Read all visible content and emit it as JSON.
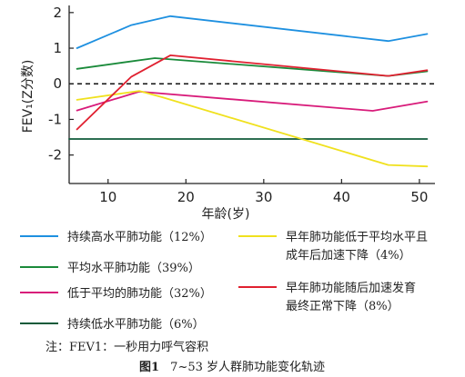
{
  "chart_data": {
    "type": "line",
    "title": "",
    "xlabel": "年龄(岁)",
    "ylabel": "FEV₁(Z分数)",
    "xlim": [
      5,
      52
    ],
    "ylim": [
      -2.8,
      2.2
    ],
    "xticks": [
      10,
      20,
      30,
      40,
      50
    ],
    "yticks": [
      -2,
      -1,
      0,
      1,
      2
    ],
    "zero_line": "dashed",
    "grid": false,
    "legend_position": "below",
    "series": [
      {
        "name": "持续高水平肺功能（12%）",
        "color": "#1e90e0",
        "points": [
          [
            6,
            1.0
          ],
          [
            13,
            1.65
          ],
          [
            18,
            1.9
          ],
          [
            46,
            1.2
          ],
          [
            51,
            1.4
          ]
        ]
      },
      {
        "name": "平均水平肺功能（39%）",
        "color": "#1a8a3a",
        "points": [
          [
            6,
            0.42
          ],
          [
            12,
            0.6
          ],
          [
            16,
            0.72
          ],
          [
            46,
            0.22
          ],
          [
            51,
            0.35
          ]
        ]
      },
      {
        "name": "低于平均的肺功能（32%）",
        "color": "#d81b7a",
        "points": [
          [
            6,
            -0.75
          ],
          [
            14,
            -0.22
          ],
          [
            44,
            -0.76
          ],
          [
            51,
            -0.5
          ]
        ]
      },
      {
        "name": "持续低水平肺功能（6%）",
        "color": "#0f5a3a",
        "points": [
          [
            5,
            -1.55
          ],
          [
            51,
            -1.55
          ]
        ]
      },
      {
        "name_lines": [
          "早年肺功能低于平均水平且",
          "成年后加速下降（4%）"
        ],
        "color": "#f0e11e",
        "points": [
          [
            6,
            -0.45
          ],
          [
            14,
            -0.2
          ],
          [
            17,
            -0.38
          ],
          [
            46,
            -2.28
          ],
          [
            51,
            -2.32
          ]
        ]
      },
      {
        "name_lines": [
          "早年肺功能随后加速发育",
          "最终正常下降（8%）"
        ],
        "color": "#e02030",
        "points": [
          [
            6,
            -1.28
          ],
          [
            13,
            0.2
          ],
          [
            18,
            0.8
          ],
          [
            46,
            0.22
          ],
          [
            51,
            0.38
          ]
        ]
      }
    ]
  },
  "note": "注：FEV1：一秒用力呼气容积",
  "caption": {
    "label": "图1",
    "text": "7~53 岁人群肺功能变化轨迹"
  }
}
